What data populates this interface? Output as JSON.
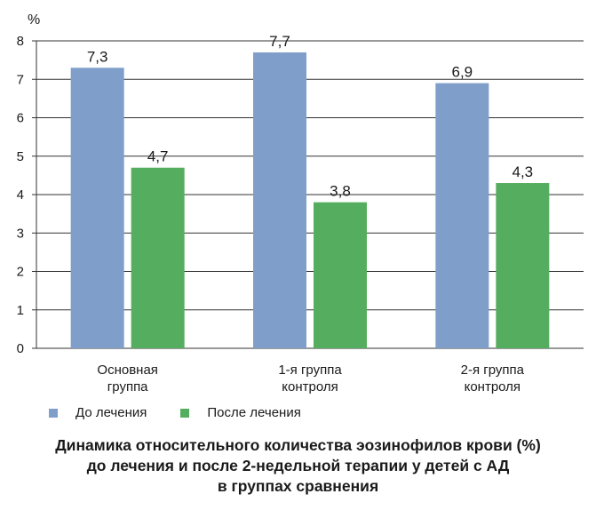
{
  "chart_data": {
    "type": "bar",
    "ylabel": "%",
    "ylim": [
      0,
      8
    ],
    "yticks": [
      "0",
      "1",
      "2",
      "3",
      "4",
      "5",
      "6",
      "7",
      "8"
    ],
    "grid": true,
    "legend_position": "bottom-left",
    "categories": [
      [
        "Основная",
        "группа"
      ],
      [
        "1-я группа",
        "контроля"
      ],
      [
        "2-я группа",
        "контроля"
      ]
    ],
    "series": [
      {
        "name": "До лечения",
        "color": "#7f9fca",
        "values": [
          7.3,
          7.7,
          6.9
        ],
        "labels": [
          "7,3",
          "7,7",
          "6,9"
        ]
      },
      {
        "name": "После лечения",
        "color": "#55ae5f",
        "values": [
          4.7,
          3.8,
          4.3
        ],
        "labels": [
          "4,7",
          "3,8",
          "4,3"
        ]
      }
    ]
  },
  "caption": [
    "Динамика относительного количества эозинофилов крови (%)",
    "до лечения и после 2-недельной терапии у детей с АД",
    "в группах сравнения"
  ]
}
